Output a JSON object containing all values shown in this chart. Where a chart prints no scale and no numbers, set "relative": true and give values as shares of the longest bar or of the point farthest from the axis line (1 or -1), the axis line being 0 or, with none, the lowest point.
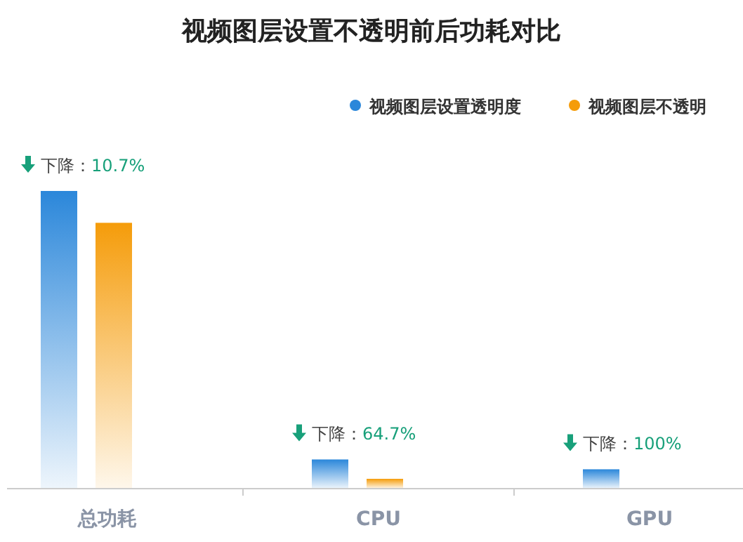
{
  "chart_data": {
    "type": "bar",
    "title": "视频图层设置不透明前后功耗对比",
    "relative": true,
    "categories": [
      "总功耗",
      "CPU",
      "GPU"
    ],
    "series": [
      {
        "name": "视频图层设置透明度",
        "color": "#2b87da",
        "values": [
          1,
          0.098,
          0.065
        ]
      },
      {
        "name": "视频图层不透明",
        "color": "#f59c0a",
        "values": [
          0.893,
          0.033,
          0
        ]
      }
    ],
    "legend": "top right",
    "annotations": [
      "下降：10.7%",
      "下降：64.7%",
      "下降：100%"
    ]
  }
}
